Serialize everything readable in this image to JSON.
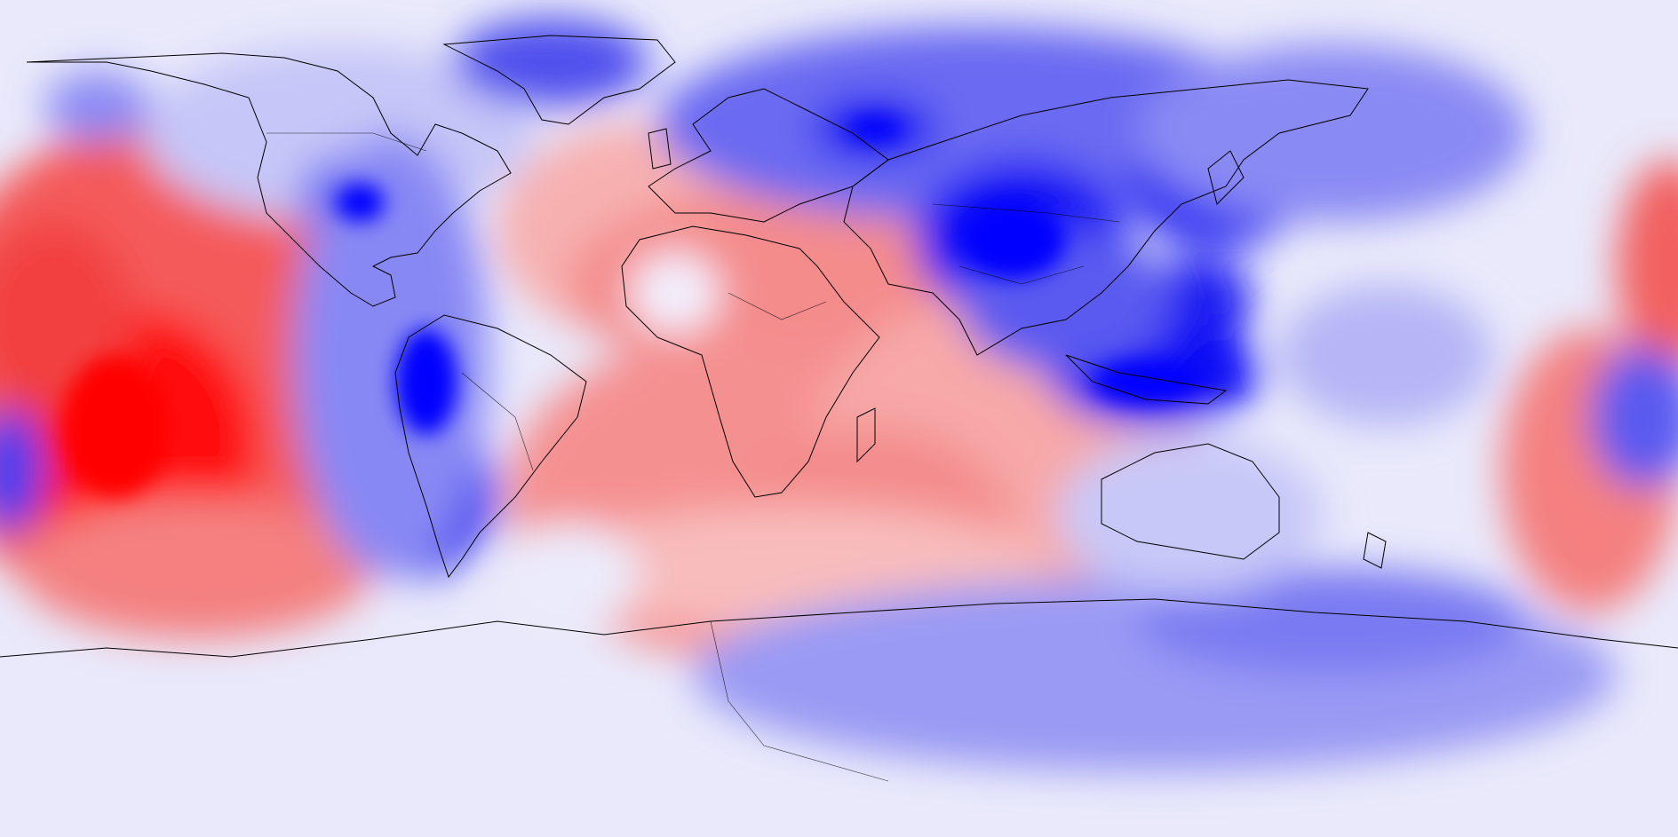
{
  "map": {
    "projection": "equirectangular",
    "lon_range": [
      -180,
      180
    ],
    "lat_range": [
      -90,
      90
    ],
    "style": "filled diverging contour field with black coastline outlines",
    "colors": {
      "strong_negative": "#0000ff",
      "mid_negative": "#6a6af2",
      "weak_negative": "#d6d8fa",
      "neutral": "#ffffff",
      "weak_positive": "#fad2d2",
      "mid_positive": "#f08080",
      "strong_positive": "#ff0000",
      "coastline": "#000000"
    },
    "has_title": false,
    "has_colorbar": false,
    "has_axes": false
  }
}
